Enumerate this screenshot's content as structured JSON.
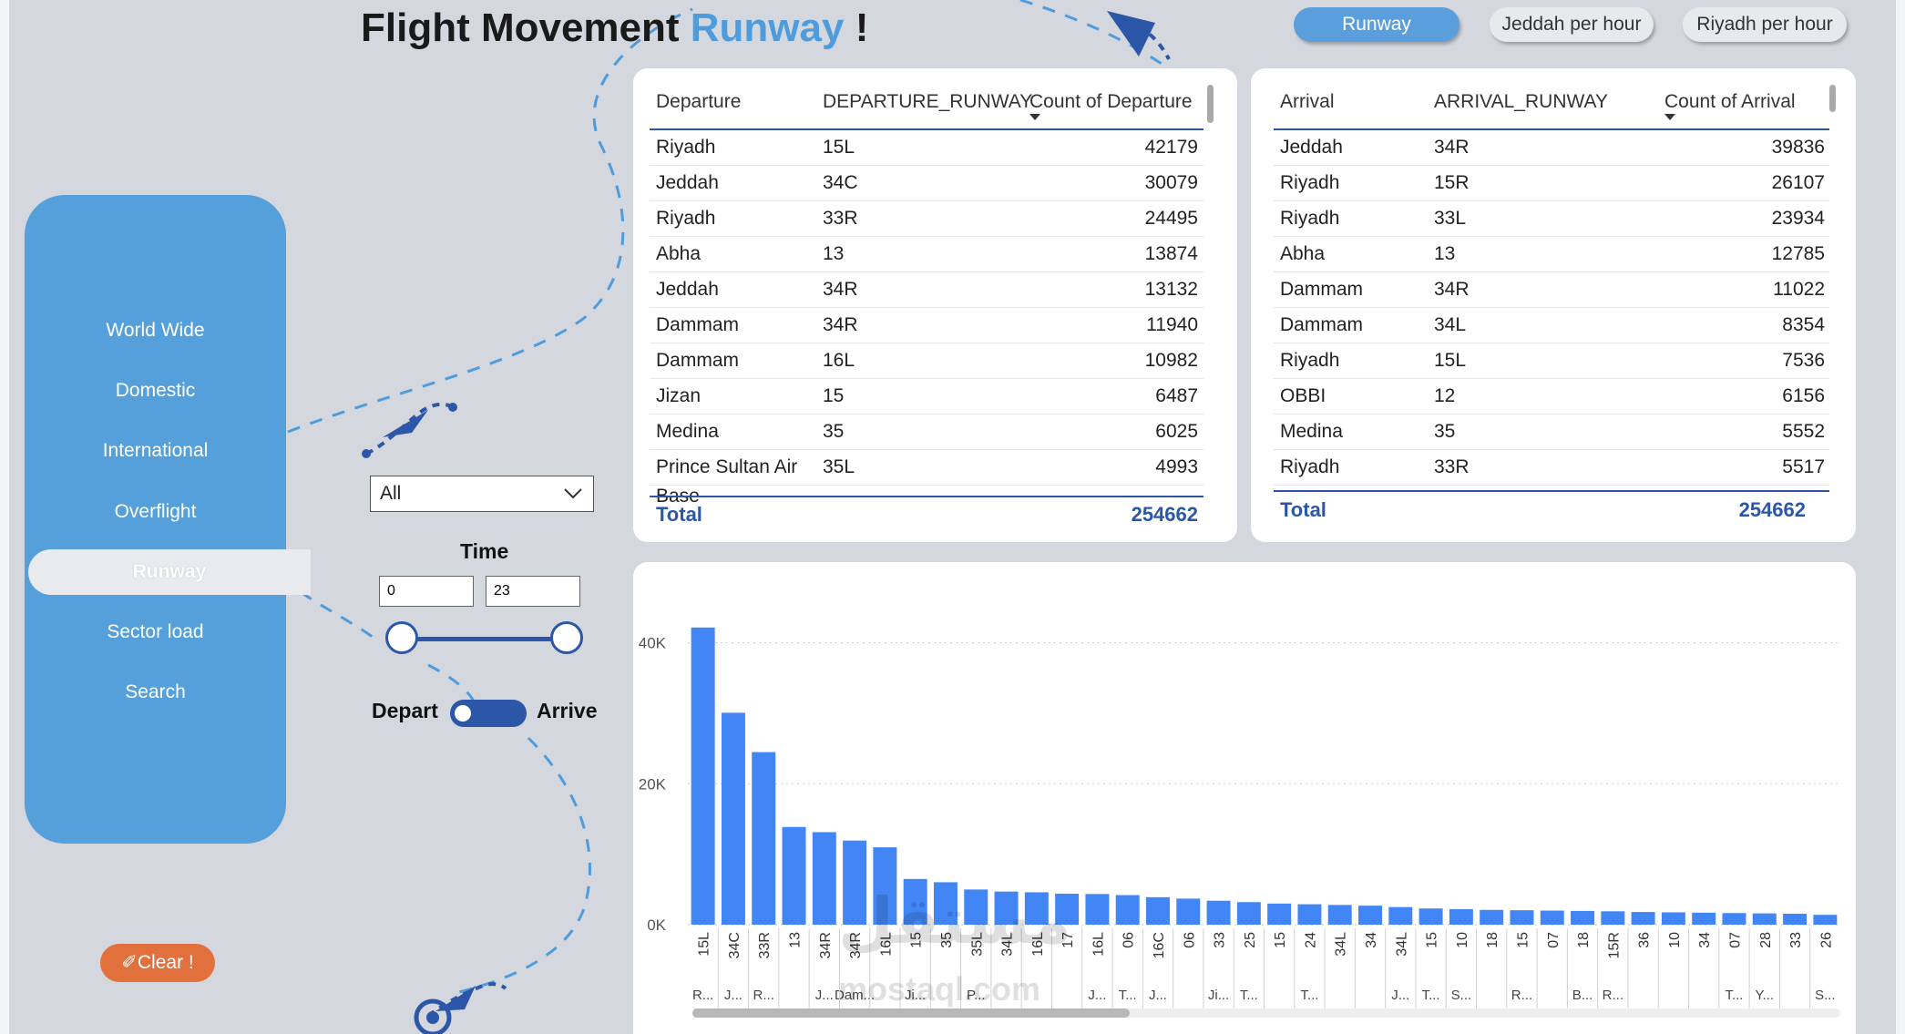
{
  "title": {
    "main": "Flight Movement ",
    "accent": "Runway",
    "end": " !"
  },
  "header_tabs": [
    "Runway",
    "Jeddah per hour",
    "Riyadh per hour"
  ],
  "sidebar": {
    "items": [
      "World Wide",
      "Domestic",
      "International",
      "Overflight",
      "Runway",
      "Sector load",
      "Search"
    ],
    "active": "Runway"
  },
  "filters": {
    "dropdown_value": "All",
    "time_label": "Time",
    "time_from": "0",
    "time_to": "23",
    "toggle_left": "Depart",
    "toggle_right": "Arrive"
  },
  "clear_button": "✐Clear !",
  "departure_table": {
    "headers": [
      "Departure",
      "DEPARTURE_RUNWAY",
      "Count of Departure"
    ],
    "rows": [
      [
        "Riyadh",
        "15L",
        "42179"
      ],
      [
        "Jeddah",
        "34C",
        "30079"
      ],
      [
        "Riyadh",
        "33R",
        "24495"
      ],
      [
        "Abha",
        "13",
        "13874"
      ],
      [
        "Jeddah",
        "34R",
        "13132"
      ],
      [
        "Dammam",
        "34R",
        "11940"
      ],
      [
        "Dammam",
        "16L",
        "10982"
      ],
      [
        "Jizan",
        "15",
        "6487"
      ],
      [
        "Medina",
        "35",
        "6025"
      ],
      [
        "Prince Sultan Air",
        "35L",
        "4993"
      ]
    ],
    "cut_row_text": "Base",
    "total_label": "Total",
    "total_value": "254662"
  },
  "arrival_table": {
    "headers": [
      "Arrival",
      "ARRIVAL_RUNWAY",
      "Count of Arrival"
    ],
    "rows": [
      [
        "Jeddah",
        "34R",
        "39836"
      ],
      [
        "Riyadh",
        "15R",
        "26107"
      ],
      [
        "Riyadh",
        "33L",
        "23934"
      ],
      [
        "Abha",
        "13",
        "12785"
      ],
      [
        "Dammam",
        "34R",
        "11022"
      ],
      [
        "Dammam",
        "34L",
        "8354"
      ],
      [
        "Riyadh",
        "15L",
        "7536"
      ],
      [
        "OBBI",
        "12",
        "6156"
      ],
      [
        "Medina",
        "35",
        "5552"
      ],
      [
        "Riyadh",
        "33R",
        "5517"
      ]
    ],
    "total_label": "Total",
    "total_value": "254662"
  },
  "watermark": {
    "arabic": "مستقل",
    "latin": "mostaql.com"
  },
  "colors": {
    "bar": "#4285f4",
    "sidebar": "#55a0da",
    "accent": "#2c56a8",
    "clear": "#e2703d"
  },
  "chart_data": {
    "type": "bar",
    "ylim": [
      0,
      45000
    ],
    "y_ticks": [
      0,
      20000,
      40000
    ],
    "y_tick_labels": [
      "0K",
      "20K",
      "40K"
    ],
    "grid": true,
    "categories": [
      "15L",
      "34C",
      "33R",
      "13",
      "34R",
      "34R",
      "16L",
      "15",
      "35",
      "35L",
      "34L",
      "16L",
      "17",
      "16L",
      "06",
      "16C",
      "06",
      "33",
      "25",
      "15",
      "24",
      "34L",
      "34",
      "34L",
      "15",
      "10",
      "18",
      "15",
      "07",
      "18",
      "15R",
      "36",
      "10",
      "34",
      "07",
      "28",
      "33",
      "26"
    ],
    "city_labels": [
      "R...",
      "J...",
      "R...",
      "",
      "J...",
      "Dam...",
      "",
      "Ji...",
      "",
      "P...",
      "",
      "",
      "",
      "J...",
      "T...",
      "J...",
      "",
      "Ji...",
      "T...",
      "",
      "T...",
      "",
      "",
      "J...",
      "T...",
      "S...",
      "",
      "R...",
      "",
      "B...",
      "R...",
      "",
      "",
      "",
      "T...",
      "Y...",
      "",
      "S..."
    ],
    "values": [
      42179,
      30079,
      24495,
      13874,
      13132,
      11940,
      10982,
      6487,
      6025,
      4993,
      4700,
      4600,
      4400,
      4350,
      4200,
      3900,
      3700,
      3400,
      3200,
      3000,
      2900,
      2800,
      2700,
      2500,
      2300,
      2200,
      2100,
      2050,
      2000,
      1950,
      1900,
      1800,
      1750,
      1700,
      1650,
      1600,
      1550,
      1400
    ]
  }
}
